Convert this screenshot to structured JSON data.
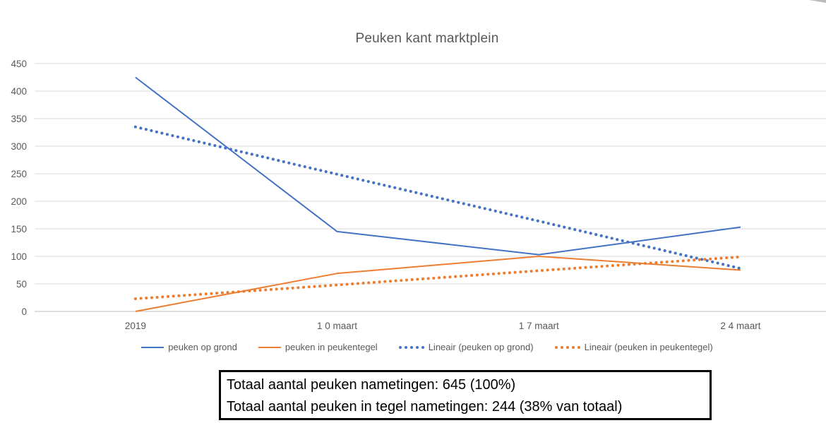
{
  "chart_data": {
    "type": "line",
    "title": "Peuken kant marktplein",
    "categories": [
      "2019",
      "1 0 maart",
      "1 7 maart",
      "2 4 maart"
    ],
    "series": [
      {
        "name": "peuken op grond",
        "color": "#4472C4",
        "style": "solid",
        "values": [
          425,
          145,
          103,
          153
        ]
      },
      {
        "name": "peuken in peukentegel",
        "color": "#ED7D31",
        "style": "solid",
        "values": [
          0,
          69,
          100,
          75
        ]
      },
      {
        "name": "Lineair (peuken op grond)",
        "color": "#4472C4",
        "style": "dotted",
        "values": [
          335,
          249,
          164,
          78
        ]
      },
      {
        "name": "Lineair (peuken in peukentegel)",
        "color": "#ED7D31",
        "style": "dotted",
        "values": [
          23,
          48,
          74,
          99
        ]
      }
    ],
    "xlabel": "",
    "ylabel": "",
    "ylim": [
      0,
      450
    ],
    "ytick_step": 50,
    "grid": true,
    "legend_position": "bottom",
    "colors": {
      "gridline": "#D9D9D9",
      "axis_line": "#BFBFBF",
      "axis_text": "#595959",
      "title_text": "#595959"
    }
  },
  "annotation_box": {
    "line1": "Totaal aantal peuken nametingen: 645 (100%)",
    "line2": "Totaal aantal peuken in tegel nametingen: 244 (38% van totaal)"
  }
}
